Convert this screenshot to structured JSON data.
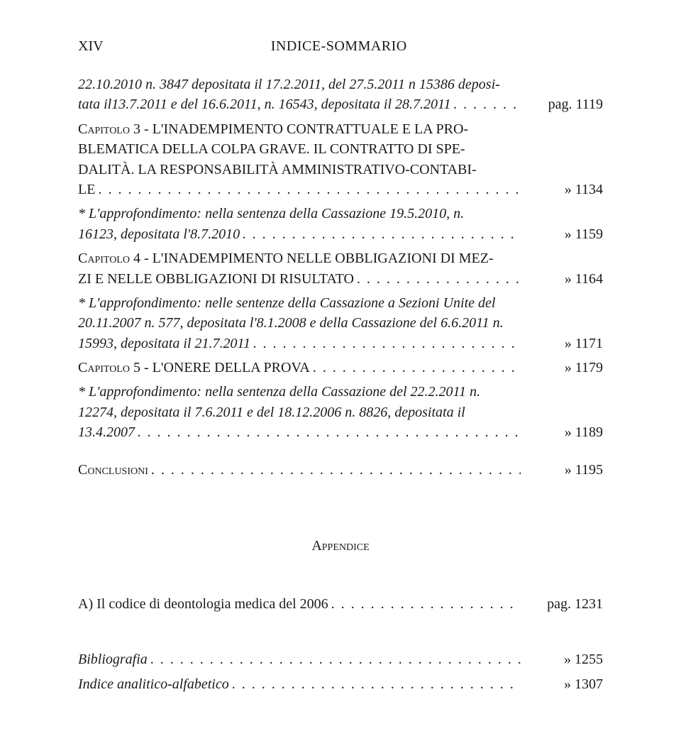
{
  "header": {
    "page_roman": "XIV",
    "title": "INDICE-SOMMARIO"
  },
  "entries": [
    {
      "pre_lines": [
        "22.10.2010 n. 3847 depositata il 17.2.2011, del 27.5.2011 n 15386 deposi-"
      ],
      "last_line": "tata il13.7.2011 e del 16.6.2011, n. 16543, depositata il 28.7.2011",
      "ref": "pag. 1119",
      "italic": true
    },
    {
      "pre_lines": [
        "Capitolo 3 - L'INADEMPIMENTO CONTRATTUALE E LA PRO-",
        "BLEMATICA DELLA COLPA GRAVE. IL CONTRATTO DI SPE-",
        "DALITÀ. LA RESPONSABILITÀ AMMINISTRATIVO-CONTABI-"
      ],
      "last_line": "LE",
      "ref": "»   1134",
      "smallcaps_first_word": true
    },
    {
      "pre_lines": [
        "* L'approfondimento: nella sentenza della Cassazione 19.5.2010, n."
      ],
      "last_line": "16123, depositata l'8.7.2010",
      "ref": "»   1159",
      "italic": true
    },
    {
      "pre_lines": [
        "Capitolo 4 - L'INADEMPIMENTO NELLE OBBLIGAZIONI DI MEZ-"
      ],
      "last_line": "ZI E NELLE OBBLIGAZIONI DI RISULTATO",
      "ref": "»   1164",
      "smallcaps_first_word": true
    },
    {
      "pre_lines": [
        "* L'approfondimento: nelle sentenze della Cassazione a Sezioni Unite del",
        "20.11.2007 n. 577, depositata l'8.1.2008 e della Cassazione del 6.6.2011 n."
      ],
      "last_line": "15993, depositata il 21.7.2011",
      "ref": "»   1171",
      "italic": true
    },
    {
      "pre_lines": [],
      "last_line": "Capitolo 5 - L'ONERE DELLA PROVA",
      "ref": "»   1179",
      "smallcaps_first_word": true
    },
    {
      "pre_lines": [
        "* L'approfondimento: nella sentenza della Cassazione del 22.2.2011 n.",
        "12274, depositata il 7.6.2011 e del 18.12.2006 n. 8826, depositata il"
      ],
      "last_line": "13.4.2007",
      "ref": "»   1189",
      "italic": true
    }
  ],
  "conclusioni": {
    "label": "Conclusioni",
    "ref": "»   1195"
  },
  "appendix": {
    "heading": "Appendice",
    "item": {
      "label": "A)  Il codice di deontologia medica del 2006",
      "ref": "pag. 1231"
    }
  },
  "back_matter": [
    {
      "label": "Bibliografia",
      "ref": "»   1255",
      "italic": true
    },
    {
      "label": "Indice analitico-alfabetico",
      "ref": "»   1307",
      "italic": true
    }
  ]
}
